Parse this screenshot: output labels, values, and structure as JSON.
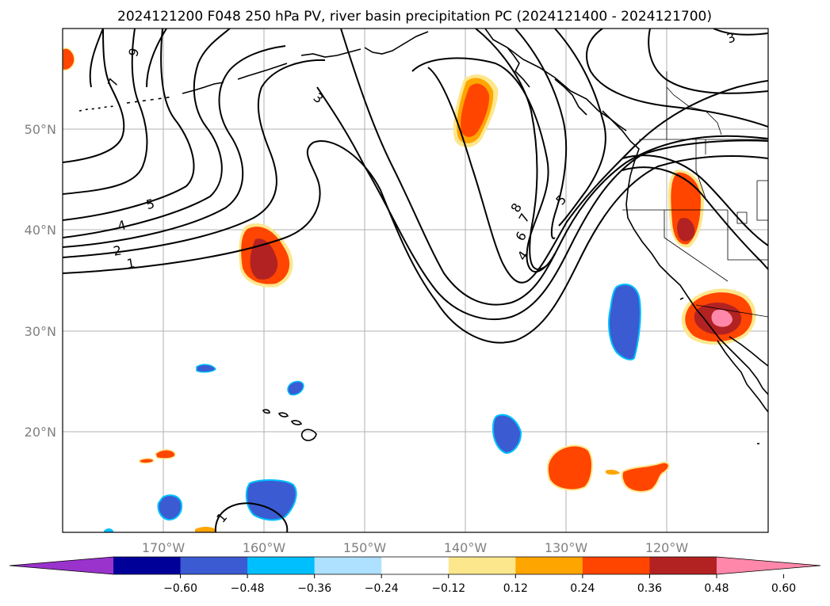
{
  "title": "2024121200 F048 250 hPa PV, river basin precipitation PC (2024121400 - 2024121700)",
  "axes": {
    "lon_labels": [
      "170°W",
      "160°W",
      "150°W",
      "140°W",
      "130°W",
      "120°W"
    ],
    "lat_labels": [
      "50°N",
      "40°N",
      "30°N",
      "20°N"
    ]
  },
  "contour_labels": [
    "9",
    "7",
    "3",
    "3",
    "5",
    "4",
    "2",
    "1",
    "8",
    "7",
    "6",
    "5",
    "4",
    "1"
  ],
  "colorbar": {
    "tick_labels": [
      "−0.60",
      "−0.48",
      "−0.36",
      "−0.24",
      "−0.12",
      "0.12",
      "0.24",
      "0.36",
      "0.48",
      "0.60"
    ],
    "colors": [
      "#9933cc",
      "#000099",
      "#3a5bd1",
      "#00bfff",
      "#aee1ff",
      "#ffffff",
      "#fde78c",
      "#ffa500",
      "#ff4500",
      "#b22222",
      "#ff88aa"
    ]
  }
}
